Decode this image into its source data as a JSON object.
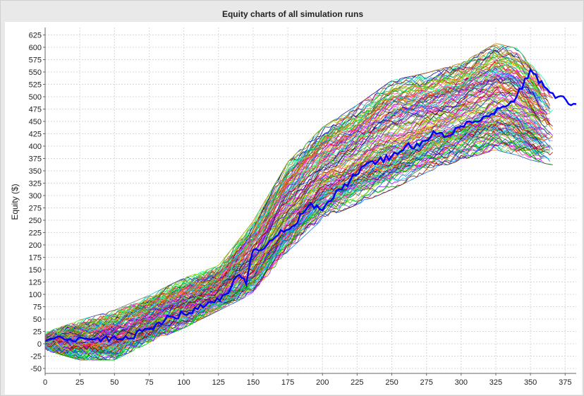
{
  "chart_data": {
    "type": "line",
    "title": "Equity charts of all simulation runs",
    "xlabel": "",
    "ylabel": "Equity ($)",
    "xlim": [
      0,
      383
    ],
    "ylim": [
      -60,
      640
    ],
    "xticks": [
      0,
      25,
      50,
      75,
      100,
      125,
      150,
      175,
      200,
      225,
      250,
      275,
      300,
      325,
      350,
      375
    ],
    "yticks": [
      -50,
      -25,
      0,
      25,
      50,
      75,
      100,
      125,
      150,
      175,
      200,
      225,
      250,
      275,
      300,
      325,
      350,
      375,
      400,
      425,
      450,
      475,
      500,
      525,
      550,
      575,
      600,
      625
    ],
    "grid": true,
    "legend": "none",
    "series_count": 160,
    "envelope": {
      "x": [
        0,
        25,
        50,
        75,
        100,
        125,
        150,
        175,
        200,
        225,
        250,
        275,
        300,
        325,
        340,
        350,
        365
      ],
      "upper": [
        15,
        40,
        60,
        90,
        125,
        150,
        240,
        360,
        430,
        475,
        525,
        540,
        560,
        600,
        590,
        560,
        510
      ],
      "lower": [
        -5,
        -25,
        -25,
        10,
        40,
        75,
        110,
        195,
        260,
        290,
        320,
        355,
        380,
        400,
        390,
        380,
        370
      ]
    },
    "highlighted_series": {
      "color": "#0000ff",
      "x": [
        0,
        10,
        20,
        30,
        40,
        50,
        60,
        70,
        80,
        90,
        100,
        110,
        120,
        130,
        140,
        145,
        150,
        160,
        170,
        180,
        190,
        200,
        210,
        220,
        230,
        240,
        250,
        260,
        270,
        280,
        290,
        300,
        310,
        320,
        330,
        340,
        350,
        360,
        370,
        383
      ],
      "y": [
        5,
        15,
        5,
        10,
        5,
        15,
        10,
        25,
        40,
        55,
        60,
        70,
        85,
        100,
        140,
        120,
        190,
        200,
        230,
        240,
        280,
        270,
        310,
        330,
        360,
        370,
        380,
        400,
        400,
        430,
        420,
        440,
        450,
        460,
        480,
        500,
        555,
        520,
        500,
        485
      ]
    },
    "series_colors": [
      "#ff0000",
      "#00cc00",
      "#0066ff",
      "#ff00ff",
      "#00cccc",
      "#cccc00",
      "#ff8800",
      "#8800ff",
      "#008800",
      "#880000",
      "#000088",
      "#ff66aa",
      "#66ff66",
      "#66aaff",
      "#aa6600",
      "#666666",
      "#00ff99",
      "#ff3366",
      "#3333cc",
      "#99cc00"
    ]
  }
}
